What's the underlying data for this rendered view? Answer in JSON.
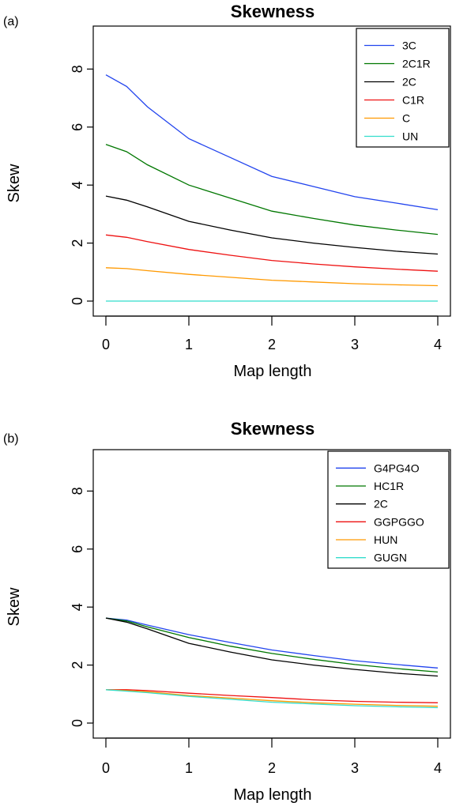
{
  "chart_data": [
    {
      "type": "line",
      "panel_label": "(a)",
      "title": "Skewness",
      "xlabel": "Map length",
      "ylabel": "Skew",
      "xlim": [
        0,
        4
      ],
      "ylim": [
        0,
        9
      ],
      "xticks": [
        "0",
        "1",
        "2",
        "3",
        "4"
      ],
      "yticks": [
        "0",
        "2",
        "4",
        "6",
        "8"
      ],
      "legend_position": "top-right",
      "x": [
        0,
        0.25,
        0.5,
        1,
        1.5,
        2,
        2.5,
        3,
        3.5,
        4
      ],
      "series": [
        {
          "name": "3C",
          "color": "#2244ee",
          "values": [
            7.8,
            7.4,
            6.7,
            5.6,
            4.95,
            4.3,
            3.95,
            3.6,
            3.38,
            3.15
          ]
        },
        {
          "name": "2C1R",
          "color": "#007700",
          "values": [
            5.4,
            5.15,
            4.7,
            4.0,
            3.55,
            3.1,
            2.85,
            2.62,
            2.45,
            2.3
          ]
        },
        {
          "name": "2C",
          "color": "#000000",
          "values": [
            3.62,
            3.48,
            3.25,
            2.75,
            2.45,
            2.18,
            2.0,
            1.85,
            1.72,
            1.62
          ]
        },
        {
          "name": "C1R",
          "color": "#ee1111",
          "values": [
            2.28,
            2.2,
            2.05,
            1.78,
            1.58,
            1.4,
            1.28,
            1.18,
            1.1,
            1.03
          ]
        },
        {
          "name": "C",
          "color": "#ff9900",
          "values": [
            1.15,
            1.12,
            1.05,
            0.92,
            0.82,
            0.72,
            0.66,
            0.6,
            0.56,
            0.53
          ]
        },
        {
          "name": "UN",
          "color": "#33ddcc",
          "values": [
            0,
            0,
            0,
            0,
            0,
            0,
            0,
            0,
            0,
            0
          ]
        }
      ]
    },
    {
      "type": "line",
      "panel_label": "(b)",
      "title": "Skewness",
      "xlabel": "Map length",
      "ylabel": "Skew",
      "xlim": [
        0,
        4
      ],
      "ylim": [
        0,
        9
      ],
      "xticks": [
        "0",
        "1",
        "2",
        "3",
        "4"
      ],
      "yticks": [
        "0",
        "2",
        "4",
        "6",
        "8"
      ],
      "legend_position": "top-right",
      "x": [
        0,
        0.25,
        0.5,
        1,
        1.5,
        2,
        2.5,
        3,
        3.5,
        4
      ],
      "series": [
        {
          "name": "G4PG4O",
          "color": "#2244ee",
          "values": [
            3.62,
            3.55,
            3.38,
            3.05,
            2.78,
            2.52,
            2.33,
            2.15,
            2.02,
            1.9
          ]
        },
        {
          "name": "HC1R",
          "color": "#007700",
          "values": [
            3.62,
            3.52,
            3.32,
            2.95,
            2.65,
            2.4,
            2.2,
            2.02,
            1.88,
            1.76
          ]
        },
        {
          "name": "2C",
          "color": "#000000",
          "values": [
            3.62,
            3.48,
            3.25,
            2.75,
            2.45,
            2.18,
            2.0,
            1.85,
            1.72,
            1.62
          ]
        },
        {
          "name": "GGPGGO",
          "color": "#ee1111",
          "values": [
            1.15,
            1.15,
            1.12,
            1.03,
            0.95,
            0.88,
            0.8,
            0.75,
            0.72,
            0.7
          ]
        },
        {
          "name": "HUN",
          "color": "#ff9900",
          "values": [
            1.15,
            1.12,
            1.08,
            0.95,
            0.86,
            0.77,
            0.7,
            0.65,
            0.61,
            0.58
          ]
        },
        {
          "name": "GUGN",
          "color": "#33ddcc",
          "values": [
            1.15,
            1.1,
            1.05,
            0.92,
            0.82,
            0.72,
            0.66,
            0.6,
            0.56,
            0.53
          ]
        }
      ]
    }
  ]
}
